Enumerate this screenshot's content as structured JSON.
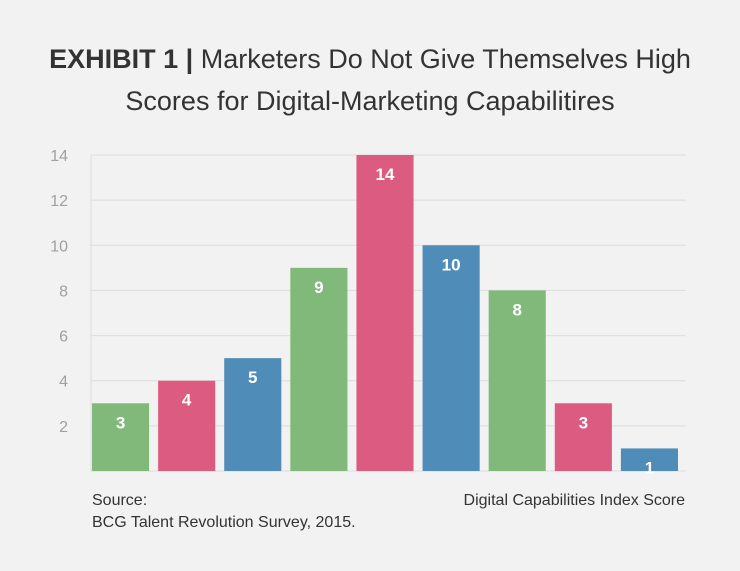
{
  "header": {
    "exhibit": "EXHIBIT 1",
    "separator": "|",
    "title_line1": "Marketers Do Not Give Themselves High",
    "title_line2": "Scores for Digital-Marketing Capabilitires"
  },
  "footer": {
    "source_label": "Source:",
    "source_text": "BCG Talent Revolution Survey, 2015.",
    "axis_note": "Digital Capabilities Index Score"
  },
  "colors": {
    "green": "#80b97a",
    "pink": "#dc5b80",
    "blue": "#4f8db8",
    "grid": "#dcdcdc",
    "tick": "#a0a0a0",
    "label": "#ffffff"
  },
  "chart_data": {
    "type": "bar",
    "categories": [
      "",
      "",
      "",
      "",
      "",
      "",
      "",
      "",
      ""
    ],
    "values": [
      3,
      4,
      5,
      9,
      14,
      10,
      8,
      3,
      1
    ],
    "bar_colors": [
      "green",
      "pink",
      "blue",
      "green",
      "pink",
      "blue",
      "green",
      "pink",
      "blue"
    ],
    "ylim": [
      0,
      14
    ],
    "yticks": [
      2,
      4,
      6,
      8,
      10,
      12,
      14
    ],
    "grid": true,
    "data_labels": true
  }
}
